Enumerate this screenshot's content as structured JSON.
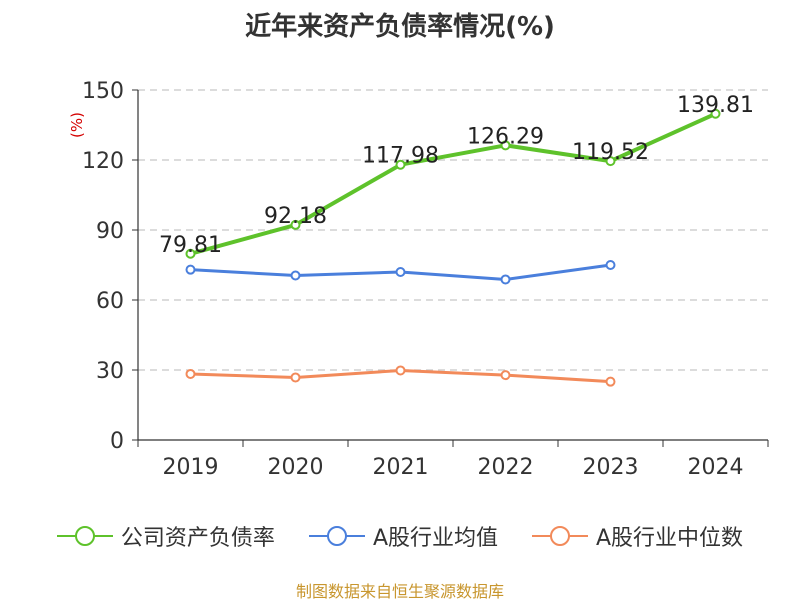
{
  "chart_data": {
    "type": "line",
    "title": "近年来资产负债率情况(%)",
    "ylabel": "(%)",
    "categories": [
      "2019",
      "2020",
      "2021",
      "2022",
      "2023",
      "2024"
    ],
    "ylim": [
      0,
      150
    ],
    "yticks": [
      0,
      30,
      60,
      90,
      120,
      150
    ],
    "grid": true,
    "legend_placement": "bottom",
    "series": [
      {
        "name": "公司资产负债率",
        "color": "#5ec22b",
        "values": [
          79.81,
          92.18,
          117.98,
          126.29,
          119.52,
          139.81
        ],
        "labels": [
          "79.81",
          "92.18",
          "117.98",
          "126.29",
          "119.52",
          "139.81"
        ]
      },
      {
        "name": "A股行业均值",
        "color": "#4a7fdc",
        "values": [
          73.0,
          70.5,
          72.0,
          68.8,
          75.0,
          null
        ]
      },
      {
        "name": "A股行业中位数",
        "color": "#f28a5a",
        "values": [
          28.3,
          26.8,
          29.8,
          27.8,
          25.0,
          null
        ]
      }
    ]
  },
  "source_text": "制图数据来自恒生聚源数据库"
}
